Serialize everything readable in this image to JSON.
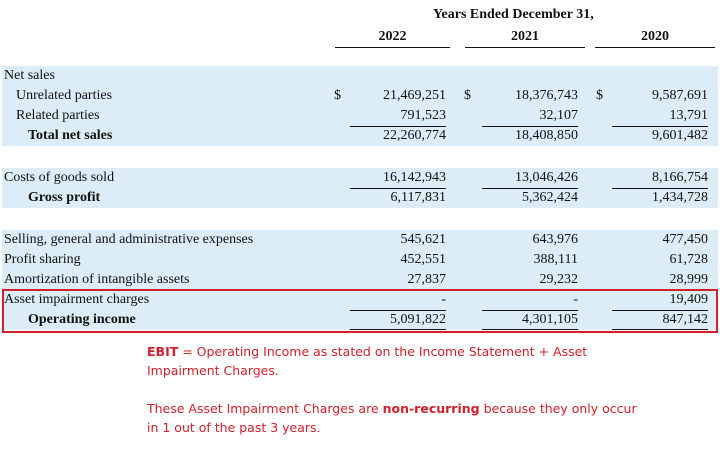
{
  "header": {
    "title": "Years Ended December 31,",
    "years": [
      "2022",
      "2021",
      "2020"
    ]
  },
  "sections": [
    {
      "rows": [
        {
          "label": "Net sales",
          "indent": 0,
          "bold": false
        },
        {
          "label": "Unrelated parties",
          "indent": 1,
          "bold": false,
          "currency": [
            "$",
            "$",
            "$"
          ],
          "values": [
            "21,469,251",
            "18,376,743",
            "9,587,691"
          ]
        },
        {
          "label": "Related parties",
          "indent": 1,
          "bold": false,
          "values": [
            "791,523",
            "32,107",
            "13,791"
          ]
        },
        {
          "label": "Total net sales",
          "indent": 2,
          "bold": true,
          "rule_above": true,
          "values": [
            "22,260,774",
            "18,408,850",
            "9,601,482"
          ]
        }
      ]
    },
    {
      "rows": [
        {
          "label": "Costs of goods sold",
          "indent": 0,
          "bold": false,
          "values": [
            "16,142,943",
            "13,046,426",
            "8,166,754"
          ]
        },
        {
          "label": "Gross profit",
          "indent": 2,
          "bold": true,
          "rule_above": true,
          "values": [
            "6,117,831",
            "5,362,424",
            "1,434,728"
          ]
        }
      ]
    },
    {
      "rows": [
        {
          "label": "Selling, general and administrative expenses",
          "indent": 0,
          "bold": false,
          "values": [
            "545,621",
            "643,976",
            "477,450"
          ]
        },
        {
          "label": "Profit sharing",
          "indent": 0,
          "bold": false,
          "values": [
            "452,551",
            "388,111",
            "61,728"
          ]
        },
        {
          "label": "Amortization of intangible assets",
          "indent": 0,
          "bold": false,
          "values": [
            "27,837",
            "29,232",
            "28,999"
          ]
        },
        {
          "label": "Asset impairment charges",
          "indent": 0,
          "bold": false,
          "highlight": true,
          "values": [
            "-",
            "-",
            "19,409"
          ]
        },
        {
          "label": "Operating income",
          "indent": 2,
          "bold": true,
          "highlight": true,
          "rule_above": true,
          "double_rule_below": true,
          "values": [
            "5,091,822",
            "4,301,105",
            "847,142"
          ]
        }
      ]
    }
  ],
  "note": {
    "paragraphs": [
      [
        {
          "text": "EBIT",
          "bold": true
        },
        {
          "text": " = Operating Income as stated on the Income Statement + Asset Impairment Charges.",
          "bold": false
        }
      ],
      [
        {
          "text": "These Asset Impairment Charges are ",
          "bold": false
        },
        {
          "text": "non-recurring",
          "bold": true
        },
        {
          "text": " because they only occur in 1 out of the past 3 years.",
          "bold": false
        }
      ]
    ]
  }
}
